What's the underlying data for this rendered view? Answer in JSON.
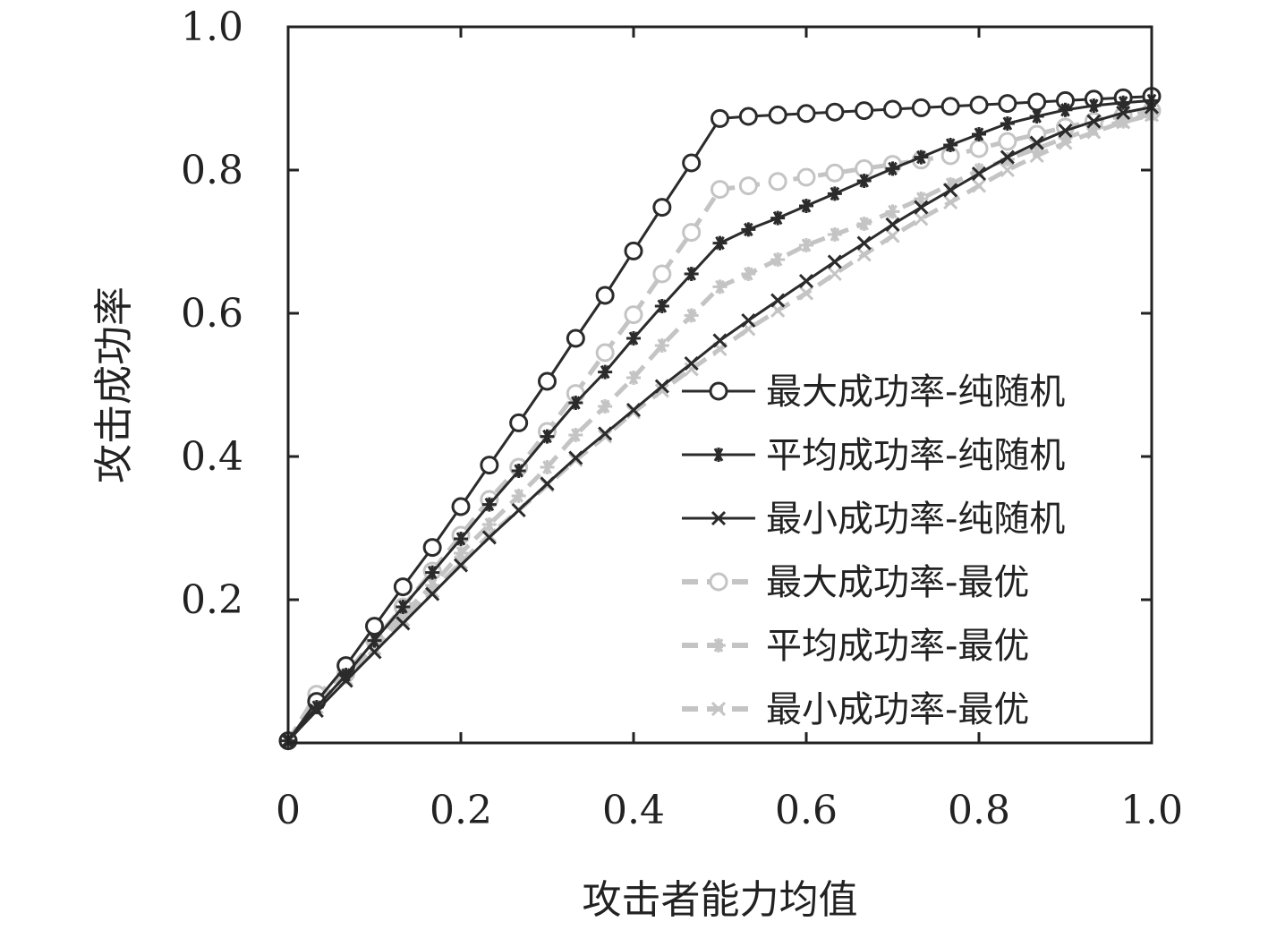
{
  "chart_data": {
    "type": "line",
    "xlabel": "攻击者能力均值",
    "ylabel": "攻击成功率",
    "xlim": [
      0,
      1.0
    ],
    "ylim": [
      0,
      1.0
    ],
    "x_ticks": [
      "0",
      "0.2",
      "0.4",
      "0.6",
      "0.8",
      "1.0"
    ],
    "y_ticks": [
      "0.2",
      "0.4",
      "0.6",
      "0.8",
      "1.0"
    ],
    "x_tick_values": [
      0,
      0.2,
      0.4,
      0.6,
      0.8,
      1.0
    ],
    "y_tick_values": [
      0.2,
      0.4,
      0.6,
      0.8,
      1.0
    ],
    "grid": false,
    "legend_position": "right",
    "series": [
      {
        "name": "最大成功率-纯随机",
        "color": "#2b2b2b",
        "dash": "solid",
        "marker": "circle",
        "x": [
          0,
          0.033,
          0.067,
          0.1,
          0.133,
          0.167,
          0.2,
          0.233,
          0.267,
          0.3,
          0.333,
          0.367,
          0.4,
          0.433,
          0.467,
          0.5,
          0.533,
          0.567,
          0.6,
          0.633,
          0.667,
          0.7,
          0.733,
          0.767,
          0.8,
          0.833,
          0.867,
          0.9,
          0.933,
          0.967,
          1.0
        ],
        "y": [
          0.003,
          0.058,
          0.108,
          0.163,
          0.218,
          0.273,
          0.33,
          0.388,
          0.447,
          0.505,
          0.565,
          0.625,
          0.687,
          0.748,
          0.81,
          0.872,
          0.875,
          0.877,
          0.879,
          0.881,
          0.883,
          0.885,
          0.887,
          0.889,
          0.891,
          0.893,
          0.895,
          0.897,
          0.899,
          0.901,
          0.903
        ]
      },
      {
        "name": "平均成功率-纯随机",
        "color": "#2b2b2b",
        "dash": "solid",
        "marker": "asterisk",
        "x": [
          0,
          0.033,
          0.067,
          0.1,
          0.133,
          0.167,
          0.2,
          0.233,
          0.267,
          0.3,
          0.333,
          0.367,
          0.4,
          0.433,
          0.467,
          0.5,
          0.533,
          0.567,
          0.6,
          0.633,
          0.667,
          0.7,
          0.733,
          0.767,
          0.8,
          0.833,
          0.867,
          0.9,
          0.933,
          0.967,
          1.0
        ],
        "y": [
          0.003,
          0.05,
          0.095,
          0.143,
          0.19,
          0.238,
          0.285,
          0.333,
          0.38,
          0.428,
          0.475,
          0.518,
          0.565,
          0.61,
          0.655,
          0.698,
          0.717,
          0.733,
          0.75,
          0.767,
          0.785,
          0.802,
          0.818,
          0.835,
          0.85,
          0.865,
          0.875,
          0.884,
          0.89,
          0.894,
          0.897
        ]
      },
      {
        "name": "最小成功率-纯随机",
        "color": "#2b2b2b",
        "dash": "solid",
        "marker": "x",
        "x": [
          0,
          0.033,
          0.067,
          0.1,
          0.133,
          0.167,
          0.2,
          0.233,
          0.267,
          0.3,
          0.333,
          0.367,
          0.4,
          0.433,
          0.467,
          0.5,
          0.533,
          0.567,
          0.6,
          0.633,
          0.667,
          0.7,
          0.733,
          0.767,
          0.8,
          0.833,
          0.867,
          0.9,
          0.933,
          0.967,
          1.0
        ],
        "y": [
          0.003,
          0.045,
          0.087,
          0.127,
          0.167,
          0.208,
          0.248,
          0.287,
          0.325,
          0.362,
          0.398,
          0.432,
          0.465,
          0.498,
          0.53,
          0.562,
          0.59,
          0.618,
          0.645,
          0.672,
          0.698,
          0.724,
          0.748,
          0.772,
          0.795,
          0.818,
          0.838,
          0.855,
          0.868,
          0.88,
          0.888
        ]
      },
      {
        "name": "最大成功率-最优",
        "color": "#c4c4c4",
        "dash": "dashed",
        "marker": "circle",
        "x": [
          0,
          0.033,
          0.067,
          0.1,
          0.133,
          0.167,
          0.2,
          0.233,
          0.267,
          0.3,
          0.333,
          0.367,
          0.4,
          0.433,
          0.467,
          0.5,
          0.533,
          0.567,
          0.6,
          0.633,
          0.667,
          0.7,
          0.733,
          0.767,
          0.8,
          0.833,
          0.867,
          0.9,
          0.933,
          0.967,
          1.0
        ],
        "y": [
          0.003,
          0.068,
          0.097,
          0.144,
          0.19,
          0.24,
          0.29,
          0.34,
          0.385,
          0.435,
          0.488,
          0.545,
          0.598,
          0.655,
          0.713,
          0.773,
          0.778,
          0.784,
          0.79,
          0.796,
          0.802,
          0.808,
          0.814,
          0.82,
          0.83,
          0.84,
          0.85,
          0.86,
          0.868,
          0.876,
          0.883
        ]
      },
      {
        "name": "平均成功率-最优",
        "color": "#c4c4c4",
        "dash": "dashed",
        "marker": "asterisk",
        "x": [
          0,
          0.033,
          0.067,
          0.1,
          0.133,
          0.167,
          0.2,
          0.233,
          0.267,
          0.3,
          0.333,
          0.367,
          0.4,
          0.433,
          0.467,
          0.5,
          0.533,
          0.567,
          0.6,
          0.633,
          0.667,
          0.7,
          0.733,
          0.767,
          0.8,
          0.833,
          0.867,
          0.9,
          0.933,
          0.967,
          1.0
        ],
        "y": [
          0.003,
          0.055,
          0.092,
          0.138,
          0.18,
          0.22,
          0.265,
          0.305,
          0.345,
          0.385,
          0.43,
          0.47,
          0.51,
          0.555,
          0.597,
          0.637,
          0.655,
          0.675,
          0.695,
          0.71,
          0.725,
          0.742,
          0.76,
          0.78,
          0.8,
          0.815,
          0.83,
          0.845,
          0.858,
          0.868,
          0.878
        ]
      },
      {
        "name": "最小成功率-最优",
        "color": "#c4c4c4",
        "dash": "dashed",
        "marker": "x",
        "x": [
          0,
          0.033,
          0.067,
          0.1,
          0.133,
          0.167,
          0.2,
          0.233,
          0.267,
          0.3,
          0.333,
          0.367,
          0.4,
          0.433,
          0.467,
          0.5,
          0.533,
          0.567,
          0.6,
          0.633,
          0.667,
          0.7,
          0.733,
          0.767,
          0.8,
          0.833,
          0.867,
          0.9,
          0.933,
          0.967,
          1.0
        ],
        "y": [
          0.003,
          0.05,
          0.09,
          0.132,
          0.172,
          0.212,
          0.252,
          0.29,
          0.325,
          0.36,
          0.395,
          0.428,
          0.462,
          0.492,
          0.522,
          0.55,
          0.578,
          0.604,
          0.628,
          0.655,
          0.682,
          0.708,
          0.732,
          0.755,
          0.778,
          0.8,
          0.82,
          0.838,
          0.853,
          0.867,
          0.877
        ]
      }
    ]
  }
}
